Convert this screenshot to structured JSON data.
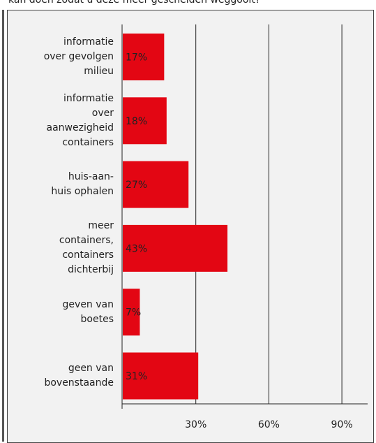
{
  "chart_data": {
    "type": "barh",
    "title": "kan doen zodat u deze meer gescheiden weggooit?",
    "categories": [
      "informatie\nover gevolgen\nmilieu",
      "informatie\nover\naanwezigheid\ncontainers",
      "huis-aan-\nhuis ophalen",
      "meer\ncontainers,\ncontainers\ndichterbij",
      "geven van\nboetes",
      "geen van\nbovenstaande"
    ],
    "values": [
      17,
      18,
      27,
      43,
      7,
      31
    ],
    "value_labels": [
      "17%",
      "18%",
      "27%",
      "43%",
      "7%",
      "31%"
    ],
    "color": "#e30613",
    "xlim": [
      0,
      100
    ],
    "xticks": [
      {
        "value": 30,
        "label": "30%"
      },
      {
        "value": 60,
        "label": "60%"
      },
      {
        "value": 90,
        "label": "90%"
      }
    ],
    "grid": true
  }
}
